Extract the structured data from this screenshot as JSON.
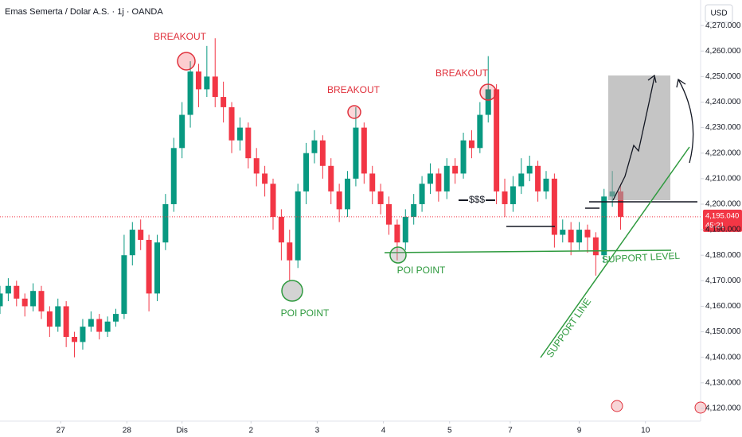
{
  "chart_data": {
    "type": "candlestick",
    "title": "Emas Semerta / Dolar A.S. · 1j · OANDA",
    "currency": "USD",
    "x": [
      0,
      3,
      6,
      9,
      12,
      15,
      18,
      21,
      24,
      27,
      30,
      33,
      36,
      39,
      42,
      45,
      48,
      51,
      54,
      57,
      60,
      63,
      66,
      69,
      72,
      75,
      78,
      81,
      84,
      87,
      90,
      93,
      96,
      99,
      102,
      105,
      108,
      111,
      114,
      117,
      120,
      123,
      126,
      129,
      132,
      135,
      138,
      141,
      144,
      147,
      150,
      153,
      156,
      159,
      162,
      165,
      168,
      171,
      174,
      177,
      180,
      183,
      186,
      189,
      192,
      195,
      198,
      201,
      204,
      207,
      210,
      213,
      216,
      219,
      222,
      225
    ],
    "open": [
      4160,
      4165,
      4168,
      4163,
      4160,
      4166,
      4158,
      4152,
      4160,
      4148,
      4146,
      4152,
      4155,
      4150,
      4154,
      4157,
      4180,
      4190,
      4186,
      4165,
      4185,
      4200,
      4222,
      4235,
      4252,
      4245,
      4250,
      4242,
      4238,
      4225,
      4230,
      4218,
      4212,
      4208,
      4195,
      4185,
      4178,
      4205,
      4220,
      4225,
      4215,
      4205,
      4198,
      4210,
      4230,
      4212,
      4205,
      4200,
      4192,
      4185,
      4195,
      4200,
      4208,
      4212,
      4205,
      4215,
      4212,
      4225,
      4222,
      4235,
      4245,
      4205,
      4200,
      4207,
      4212,
      4215,
      4205,
      4210,
      4188,
      4190,
      4185,
      4190,
      4187,
      4180,
      4203,
      4205
    ],
    "high": [
      4168,
      4171,
      4170,
      4165,
      4169,
      4168,
      4160,
      4163,
      4162,
      4150,
      4155,
      4158,
      4157,
      4156,
      4159,
      4188,
      4193,
      4194,
      4188,
      4188,
      4204,
      4226,
      4240,
      4256,
      4255,
      4262,
      4265,
      4248,
      4240,
      4234,
      4232,
      4222,
      4215,
      4210,
      4198,
      4190,
      4208,
      4224,
      4229,
      4227,
      4218,
      4208,
      4213,
      4238,
      4232,
      4215,
      4208,
      4203,
      4194,
      4198,
      4204,
      4211,
      4216,
      4214,
      4218,
      4218,
      4228,
      4229,
      4240,
      4258,
      4247,
      4210,
      4211,
      4218,
      4219,
      4217,
      4213,
      4212,
      4194,
      4193,
      4193,
      4192,
      4189,
      4206,
      4213,
      4208
    ],
    "low": [
      4157,
      4162,
      4160,
      4156,
      4158,
      4155,
      4148,
      4150,
      4144,
      4140,
      4143,
      4150,
      4147,
      4148,
      4152,
      4155,
      4176,
      4182,
      4158,
      4162,
      4182,
      4197,
      4218,
      4230,
      4238,
      4242,
      4238,
      4232,
      4220,
      4221,
      4214,
      4207,
      4203,
      4190,
      4178,
      4170,
      4175,
      4200,
      4216,
      4210,
      4200,
      4193,
      4195,
      4207,
      4208,
      4200,
      4196,
      4188,
      4178,
      4182,
      4192,
      4197,
      4204,
      4201,
      4202,
      4208,
      4210,
      4218,
      4220,
      4232,
      4200,
      4195,
      4197,
      4204,
      4209,
      4201,
      4202,
      4183,
      4185,
      4180,
      4182,
      4181,
      4172,
      4177,
      4199,
      4190
    ],
    "close": [
      4165,
      4168,
      4163,
      4160,
      4166,
      4158,
      4152,
      4160,
      4148,
      4146,
      4152,
      4155,
      4150,
      4154,
      4157,
      4180,
      4190,
      4186,
      4165,
      4185,
      4200,
      4222,
      4235,
      4252,
      4245,
      4250,
      4242,
      4238,
      4225,
      4230,
      4218,
      4212,
      4208,
      4195,
      4185,
      4178,
      4205,
      4220,
      4225,
      4215,
      4205,
      4198,
      4210,
      4230,
      4212,
      4205,
      4200,
      4192,
      4185,
      4195,
      4200,
      4208,
      4212,
      4205,
      4215,
      4212,
      4225,
      4222,
      4235,
      4245,
      4205,
      4200,
      4207,
      4212,
      4215,
      4205,
      4210,
      4188,
      4190,
      4185,
      4190,
      4187,
      4180,
      4203,
      4205,
      4195.04
    ],
    "up_color": "#089981",
    "down_color": "#f23645",
    "xlim": [
      0,
      254
    ],
    "xticks": [
      {
        "value": 22,
        "label": "27"
      },
      {
        "value": 46,
        "label": "28"
      },
      {
        "value": 66,
        "label": "Dis"
      },
      {
        "value": 91,
        "label": "2"
      },
      {
        "value": 115,
        "label": "3"
      },
      {
        "value": 139,
        "label": "4"
      },
      {
        "value": 163,
        "label": "5"
      },
      {
        "value": 185,
        "label": "7"
      },
      {
        "value": 210,
        "label": "9"
      },
      {
        "value": 234,
        "label": "10"
      }
    ],
    "ylim": [
      4115,
      4280
    ],
    "yticks": [
      {
        "value": 4120,
        "label": "4,120.000"
      },
      {
        "value": 4130,
        "label": "4,130.000"
      },
      {
        "value": 4140,
        "label": "4,140.000"
      },
      {
        "value": 4150,
        "label": "4,150.000"
      },
      {
        "value": 4160,
        "label": "4,160.000"
      },
      {
        "value": 4170,
        "label": "4,170.000"
      },
      {
        "value": 4180,
        "label": "4,180.000"
      },
      {
        "value": 4190,
        "label": "4,190.000"
      },
      {
        "value": 4200,
        "label": "4,200.000"
      },
      {
        "value": 4210,
        "label": "4,210.000"
      },
      {
        "value": 4220,
        "label": "4,220.000"
      },
      {
        "value": 4230,
        "label": "4,230.000"
      },
      {
        "value": 4240,
        "label": "4,240.000"
      },
      {
        "value": 4250,
        "label": "4,250.000"
      },
      {
        "value": 4260,
        "label": "4,260.000"
      },
      {
        "value": 4270,
        "label": "4,270.000"
      }
    ],
    "last_price": {
      "value": 4195.04,
      "label": "4,195.040"
    },
    "countdown": "45:21",
    "annotations": [
      "BREAKOUT",
      "BREAKOUT",
      "BREAKOUT",
      "POI POINT",
      "POI POINT",
      "$$$",
      "SUPPORT LEVEL",
      "SUPPORT LINE"
    ]
  }
}
